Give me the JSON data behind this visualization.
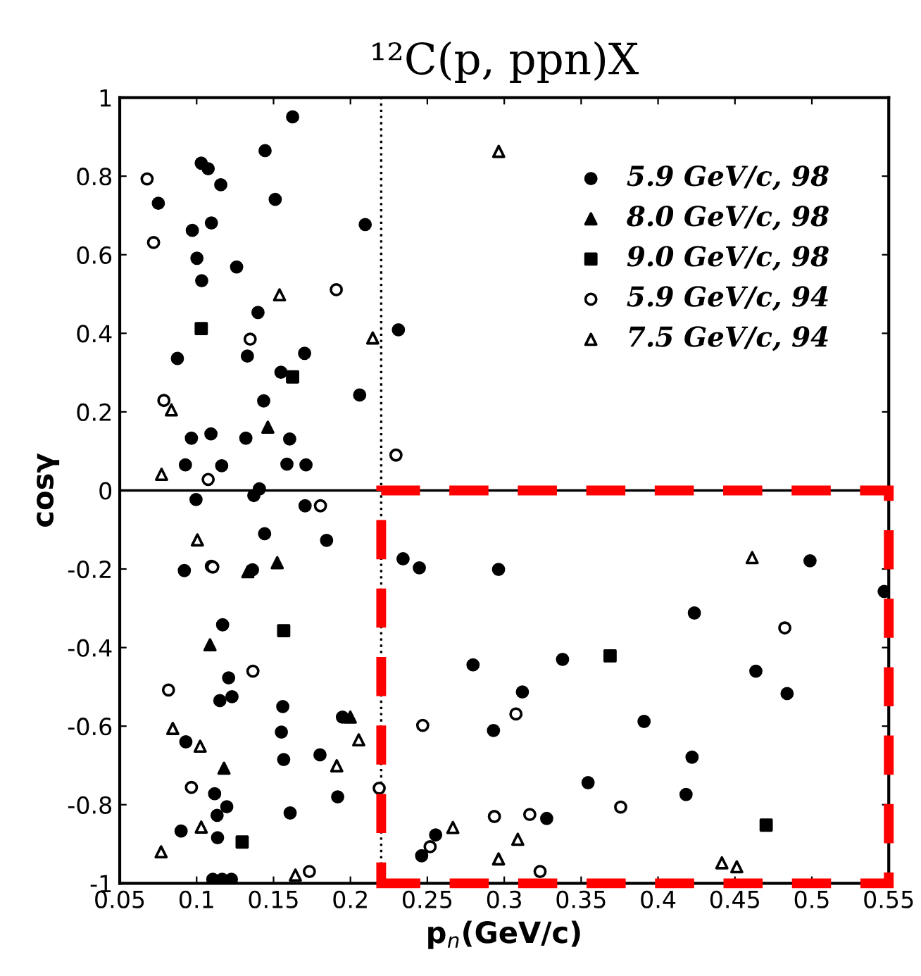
{
  "chart_data": {
    "type": "scatter",
    "title": "¹²C(p, ppn)X",
    "xlabel": "p$_{n}$(GeV/c)",
    "ylabel": "cosγ",
    "xlim": [
      0.05,
      0.55
    ],
    "ylim": [
      -1,
      1
    ],
    "xticks": [
      0.05,
      0.1,
      0.15,
      0.2,
      0.25,
      0.3,
      0.35,
      0.4,
      0.45,
      0.5,
      0.55
    ],
    "yticks": [
      {
        "value": -1,
        "label": "-1"
      },
      {
        "value": -0.8,
        "label": "-0.8"
      },
      {
        "value": -0.6,
        "label": "-0.6"
      },
      {
        "value": -0.4,
        "label": "-0.4"
      },
      {
        "value": -0.2,
        "label": "-0.2"
      },
      0,
      0.2,
      0.4,
      0.6,
      0.8,
      1
    ],
    "grid": false,
    "legend": "top right",
    "ref_lines": [
      {
        "axis": "y",
        "value": 0,
        "color": "#000000",
        "line_style": "solid"
      },
      {
        "axis": "x",
        "value": 0.22,
        "color": "#000000",
        "line_style": "dotted"
      }
    ],
    "series": [
      {
        "name": "5.9 GeV/c, 98",
        "color": "#000000",
        "marker": "circle",
        "x": [
          0.1624,
          0.1445,
          0.103,
          0.1075,
          0.1157,
          0.0751,
          0.1511,
          0.0972,
          0.1096,
          0.2096,
          0.1002,
          0.126,
          0.1033,
          0.1399,
          0.0875,
          0.133,
          0.1702,
          0.1548,
          0.1436,
          0.206,
          0.0966,
          0.1093,
          0.132,
          0.1605,
          0.0927,
          0.1163,
          0.1587,
          0.1711,
          0.1408,
          0.2312,
          0.1372,
          0.0996,
          0.1705,
          0.1442,
          0.1845,
          0.092,
          0.1096,
          0.1363,
          0.1169,
          0.1208,
          0.1151,
          0.123,
          0.156,
          0.1551,
          0.093,
          0.1948,
          0.1802,
          0.1566,
          0.1117,
          0.1917,
          0.1196,
          0.1133,
          0.1608,
          0.0899,
          0.1136,
          0.1105,
          0.1166,
          0.1226,
          0.2342,
          0.2448,
          0.2963,
          0.4236,
          0.4988,
          0.547,
          0.2797,
          0.3379,
          0.3118,
          0.293,
          0.3909,
          0.4636,
          0.4839,
          0.4221,
          0.3545,
          0.4182,
          0.3276,
          0.2554,
          0.2463
        ],
        "values": [
          0.951,
          0.865,
          0.833,
          0.819,
          0.778,
          0.731,
          0.741,
          0.662,
          0.681,
          0.677,
          0.591,
          0.569,
          0.534,
          0.453,
          0.336,
          0.342,
          0.349,
          0.301,
          0.228,
          0.243,
          0.133,
          0.144,
          0.133,
          0.131,
          0.065,
          0.063,
          0.067,
          0.065,
          0.004,
          0.409,
          -0.013,
          -0.023,
          -0.039,
          -0.11,
          -0.127,
          -0.204,
          -0.193,
          -0.202,
          -0.342,
          -0.477,
          -0.535,
          -0.525,
          -0.55,
          -0.615,
          -0.64,
          -0.577,
          -0.673,
          -0.685,
          -0.772,
          -0.78,
          -0.805,
          -0.827,
          -0.821,
          -0.867,
          -0.884,
          -0.99,
          -0.99,
          -0.99,
          -0.174,
          -0.197,
          -0.201,
          -0.312,
          -0.179,
          -0.257,
          -0.444,
          -0.43,
          -0.513,
          -0.611,
          -0.588,
          -0.46,
          -0.517,
          -0.679,
          -0.744,
          -0.774,
          -0.835,
          -0.877,
          -0.93
        ]
      },
      {
        "name": "8.0 GeV/c, 98",
        "color": "#000000",
        "marker": "triangle",
        "x": [
          0.1463,
          0.1524,
          0.1333,
          0.1087,
          0.1178,
          0.1999
        ],
        "values": [
          0.161,
          -0.184,
          -0.207,
          -0.393,
          -0.707,
          -0.577
        ]
      },
      {
        "name": "9.0 GeV/c, 98",
        "color": "#000000",
        "marker": "square",
        "x": [
          0.103,
          0.1624,
          0.1566,
          0.1296,
          0.3688,
          0.4703
        ],
        "values": [
          0.412,
          0.289,
          -0.357,
          -0.895,
          -0.421,
          -0.852
        ]
      },
      {
        "name": "5.9 GeV/c, 94",
        "color": "#000000",
        "marker": "circle-open",
        "x": [
          0.0678,
          0.072,
          0.1908,
          0.1348,
          0.0787,
          0.1075,
          0.2296,
          0.1805,
          0.1105,
          0.1366,
          0.0817,
          0.0966,
          0.2187,
          0.1733,
          0.4824,
          0.247,
          0.3076,
          0.2936,
          0.3166,
          0.3757,
          0.2518,
          0.3233
        ],
        "values": [
          0.793,
          0.631,
          0.511,
          0.385,
          0.229,
          0.028,
          0.09,
          -0.039,
          -0.195,
          -0.46,
          -0.508,
          -0.756,
          -0.758,
          -0.97,
          -0.35,
          -0.598,
          -0.569,
          -0.83,
          -0.825,
          -0.806,
          -0.907,
          -0.97
        ]
      },
      {
        "name": "7.5 GeV/c, 94",
        "color": "#000000",
        "marker": "triangle-open",
        "x": [
          0.1539,
          0.2145,
          0.0836,
          0.0772,
          0.2964,
          0.1005,
          0.0845,
          0.1023,
          0.2054,
          0.1911,
          0.103,
          0.0769,
          0.1642,
          0.4612,
          0.2666,
          0.3088,
          0.2963,
          0.4415,
          0.4512
        ],
        "values": [
          0.498,
          0.388,
          0.205,
          0.041,
          0.863,
          -0.126,
          -0.606,
          -0.651,
          -0.635,
          -0.701,
          -0.857,
          -0.92,
          -0.979,
          -0.171,
          -0.858,
          -0.888,
          -0.938,
          -0.948,
          -0.958
        ]
      }
    ]
  }
}
